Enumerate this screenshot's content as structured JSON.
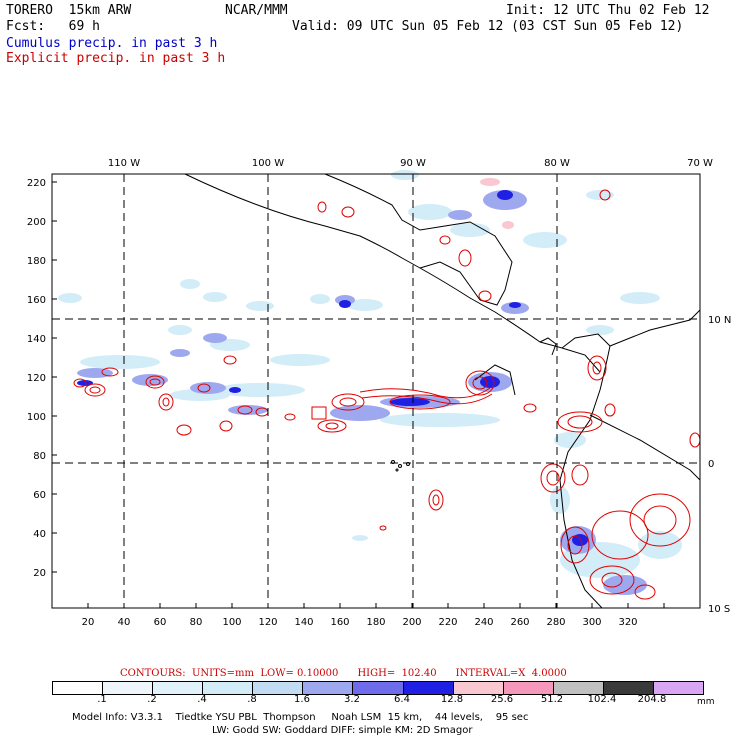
{
  "header": {
    "model": "TORERO  15km ARW",
    "org": "NCAR/MMM",
    "init": "Init: 12 UTC Thu 02 Feb 12",
    "fcst": "Fcst:   69 h",
    "valid": "Valid: 09 UTC Sun 05 Feb 12 (03 CST Sun 05 Feb 12)",
    "field_cumulus": "Cumulus precip. in past 3 h",
    "field_explicit": "Explicit precip. in past 3 h"
  },
  "map": {
    "top_longitudes": [
      "110 W",
      "100 W",
      "90 W",
      "80 W",
      "70 W"
    ],
    "right_latitudes": [
      "10 N",
      "0",
      "10 S"
    ],
    "x_ticks": [
      "20",
      "40",
      "60",
      "80",
      "100",
      "120",
      "140",
      "160",
      "180",
      "200",
      "220",
      "240",
      "260",
      "280",
      "300",
      "320"
    ],
    "y_ticks": [
      "20",
      "40",
      "60",
      "80",
      "100",
      "120",
      "140",
      "160",
      "180",
      "200",
      "220"
    ]
  },
  "contours": {
    "label": "CONTOURS:  UNITS=mm  LOW= 0.10000      HIGH=  102.40      INTERVAL=X  4.0000"
  },
  "legend": {
    "colors": [
      "#ffffff",
      "#eef6fc",
      "#e2f2fb",
      "#d2ecf8",
      "#c2dcf4",
      "#9ea8ef",
      "#6f6cec",
      "#2020e4",
      "#f9c8d0",
      "#f598bc",
      "#c0c0c0",
      "#3a3a3a",
      "#d8a6f2"
    ],
    "labels": [
      ".1",
      ".2",
      ".4",
      ".8",
      "1.6",
      "3.2",
      "6.4",
      "12.8",
      "25.6",
      "51.2",
      "102.4",
      "204.8"
    ],
    "units": "mm"
  },
  "footer": {
    "line1": "Model Info: V3.3.1    Tiedtke YSU PBL  Thompson     Noah LSM  15 km,    44 levels,    95 sec",
    "line2": "LW: Godd SW: Goddard DIFF: simple KM: 2D Smagor"
  }
}
